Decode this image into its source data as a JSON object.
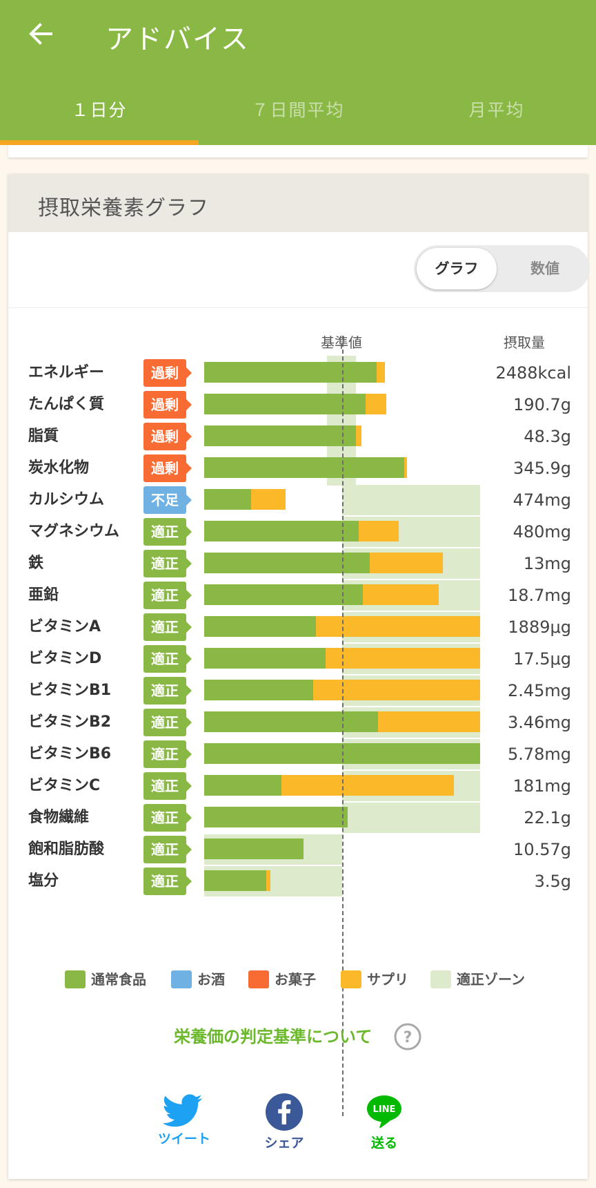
{
  "appbar": {
    "title": "アドバイス"
  },
  "tabs": [
    {
      "label": "１日分",
      "active": true
    },
    {
      "label": "７日間平均",
      "active": false
    },
    {
      "label": "月平均",
      "active": false
    }
  ],
  "card": {
    "title": "摂取栄養素グラフ",
    "toggle": {
      "graph": "グラフ",
      "numeric": "数値",
      "selected": "グラフ"
    },
    "column_headers": {
      "reference": "基準値",
      "intake": "摂取量"
    }
  },
  "colors": {
    "normal_food": "#8ab845",
    "alcohol": "#6fb1e3",
    "snacks": "#f86b33",
    "supplement": "#fbb929",
    "proper_zone": "#ddebcc",
    "status_excess": "#f86b33",
    "status_deficient": "#6fb1e3",
    "status_proper": "#8ab845"
  },
  "chart_data": {
    "type": "bar",
    "orientation": "horizontal",
    "stacked": true,
    "reference_line": "基準値",
    "note": "values expressed as percent of reference (基準値 = 100)",
    "categories": [
      "エネルギー",
      "たんぱく質",
      "脂質",
      "炭水化物",
      "カルシウム",
      "マグネシウム",
      "鉄",
      "亜鉛",
      "ビタミンA",
      "ビタミンD",
      "ビタミンB1",
      "ビタミンB2",
      "ビタミンB6",
      "ビタミンC",
      "食物繊維",
      "飽和脂肪酸",
      "塩分"
    ],
    "series": [
      {
        "name": "通常食品",
        "values": [
          125,
          117,
          110,
          145,
          34,
          112,
          120,
          115,
          81,
          88,
          79,
          126,
          200,
          56,
          104,
          72,
          45
        ]
      },
      {
        "name": "サプリ",
        "values": [
          6,
          15,
          4,
          2,
          25,
          29,
          53,
          55,
          119,
          112,
          121,
          74,
          0,
          125,
          0,
          0,
          3
        ]
      }
    ],
    "proper_zone_end": [
      null,
      null,
      null,
      null,
      200,
      200,
      200,
      200,
      200,
      200,
      200,
      200,
      200,
      200,
      200,
      100,
      100
    ],
    "status": [
      "過剰",
      "過剰",
      "過剰",
      "過剰",
      "不足",
      "適正",
      "適正",
      "適正",
      "適正",
      "適正",
      "適正",
      "適正",
      "適正",
      "適正",
      "適正",
      "適正",
      "適正"
    ],
    "intake": [
      "2488kcal",
      "190.7g",
      "48.3g",
      "345.9g",
      "474mg",
      "480mg",
      "13mg",
      "18.7mg",
      "1889μg",
      "17.5μg",
      "2.45mg",
      "3.46mg",
      "5.78mg",
      "181mg",
      "22.1g",
      "10.57g",
      "3.5g"
    ],
    "legend": [
      "通常食品",
      "お酒",
      "お菓子",
      "サプリ",
      "適正ゾーン"
    ],
    "xlim": [
      0,
      200
    ]
  },
  "legend": [
    {
      "label": "通常食品",
      "color": "#8ab845"
    },
    {
      "label": "お酒",
      "color": "#6fb1e3"
    },
    {
      "label": "お菓子",
      "color": "#f86b33"
    },
    {
      "label": "サプリ",
      "color": "#fbb929"
    },
    {
      "label": "適正ゾーン",
      "color": "#ddebcc"
    }
  ],
  "criteria_link": "栄養価の判定基準について",
  "share": [
    {
      "label": "ツイート",
      "color": "#1da1f2"
    },
    {
      "label": "シェア",
      "color": "#3b5998"
    },
    {
      "label": "送る",
      "color": "#00b900"
    }
  ]
}
